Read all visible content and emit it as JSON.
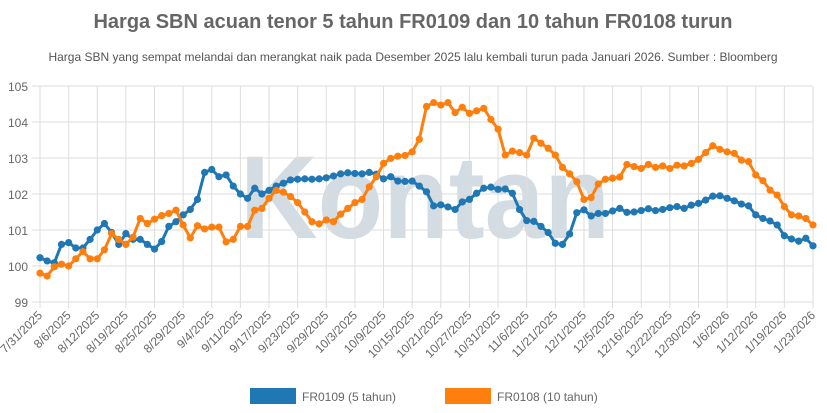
{
  "chart_data": {
    "type": "line",
    "title": "Harga SBN acuan tenor 5 tahun FR0109 dan 10 tahun FR0108 turun",
    "subtitle": "Harga SBN yang sempat melandai dan merangkat naik pada Desember 2025 lalu kembali turun pada Januari 2026. Sumber : Bloomberg",
    "watermark": "Kontan",
    "xlabel": "",
    "ylabel": "",
    "ylim": [
      99,
      105
    ],
    "y_ticks": [
      "99",
      "100",
      "101",
      "102",
      "103",
      "104",
      "105"
    ],
    "x_tick_labels": [
      "7/31/2025",
      "8/6/2025",
      "8/12/2025",
      "8/19/2025",
      "8/25/2025",
      "8/29/2025",
      "9/4/2025",
      "9/11/2025",
      "9/17/2025",
      "9/23/2025",
      "9/29/2025",
      "10/3/2025",
      "10/9/2025",
      "10/15/2025",
      "10/21/2025",
      "10/27/2025",
      "10/31/2025",
      "11/6/2025",
      "11/21/2025",
      "12/1/2025",
      "12/5/2025",
      "12/16/2025",
      "12/22/2025",
      "12/30/2025",
      "1/6/2026",
      "1/12/2026",
      "1/19/2026",
      "1/23/2026"
    ],
    "grid": true,
    "legend_position": "bottom",
    "series": [
      {
        "name": "FR0109 (5 tahun)",
        "color": "#1f77b4",
        "values": [
          100.23,
          100.14,
          100.09,
          100.6,
          100.65,
          100.5,
          100.5,
          100.74,
          101.0,
          101.18,
          100.93,
          100.6,
          100.9,
          100.74,
          100.74,
          100.6,
          100.47,
          100.68,
          101.1,
          101.23,
          101.42,
          101.57,
          101.85,
          102.6,
          102.68,
          102.48,
          102.53,
          102.22,
          102.0,
          101.88,
          102.16,
          102.0,
          102.1,
          102.22,
          102.3,
          102.39,
          102.41,
          102.42,
          102.41,
          102.42,
          102.45,
          102.5,
          102.56,
          102.59,
          102.57,
          102.56,
          102.6,
          102.55,
          102.42,
          102.48,
          102.36,
          102.35,
          102.36,
          102.22,
          102.06,
          101.67,
          101.7,
          101.64,
          101.57,
          101.78,
          101.85,
          102.02,
          102.16,
          102.19,
          102.13,
          102.14,
          102.02,
          101.57,
          101.26,
          101.24,
          101.1,
          100.93,
          100.63,
          100.6,
          100.89,
          101.48,
          101.56,
          101.39,
          101.46,
          101.46,
          101.53,
          101.6,
          101.49,
          101.5,
          101.54,
          101.59,
          101.54,
          101.57,
          101.62,
          101.65,
          101.6,
          101.69,
          101.74,
          101.83,
          101.94,
          101.95,
          101.88,
          101.81,
          101.72,
          101.67,
          101.42,
          101.32,
          101.25,
          101.14,
          100.84,
          100.75,
          100.69,
          100.77,
          100.56
        ]
      },
      {
        "name": "FR0108 (10 tahun)",
        "color": "#ff7f0e",
        "values": [
          99.8,
          99.72,
          99.98,
          100.05,
          100.0,
          100.2,
          100.4,
          100.2,
          100.2,
          100.45,
          100.9,
          100.74,
          100.6,
          100.8,
          101.32,
          101.18,
          101.3,
          101.4,
          101.46,
          101.55,
          101.14,
          100.78,
          101.12,
          101.03,
          101.08,
          101.08,
          100.67,
          100.74,
          101.1,
          101.1,
          101.55,
          101.6,
          101.88,
          102.1,
          102.05,
          101.93,
          101.76,
          101.5,
          101.23,
          101.17,
          101.28,
          101.23,
          101.44,
          101.6,
          101.76,
          101.85,
          102.2,
          102.48,
          102.85,
          102.99,
          103.05,
          103.07,
          103.17,
          103.52,
          104.43,
          104.54,
          104.47,
          104.54,
          104.26,
          104.41,
          104.24,
          104.31,
          104.38,
          104.07,
          103.8,
          103.08,
          103.19,
          103.15,
          103.08,
          103.55,
          103.41,
          103.27,
          103.08,
          102.74,
          102.56,
          102.34,
          101.85,
          101.9,
          102.28,
          102.41,
          102.44,
          102.47,
          102.82,
          102.76,
          102.71,
          102.82,
          102.74,
          102.78,
          102.71,
          102.8,
          102.78,
          102.85,
          102.96,
          103.15,
          103.34,
          103.24,
          103.17,
          103.13,
          102.94,
          102.9,
          102.53,
          102.37,
          102.11,
          101.97,
          101.65,
          101.42,
          101.39,
          101.32,
          101.14
        ]
      }
    ]
  }
}
